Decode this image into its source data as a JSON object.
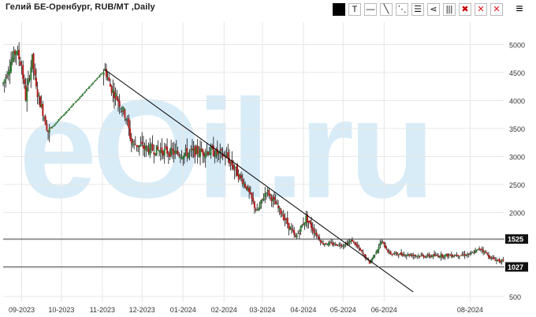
{
  "title": "Гелий БЕ-Оренбург, RUB/MT ,Daily",
  "toolbar": {
    "buttons": [
      {
        "name": "color-swatch-icon",
        "glyph": "",
        "style": "filled"
      },
      {
        "name": "text-tool-icon",
        "glyph": "T",
        "style": ""
      },
      {
        "name": "horizontal-line-icon",
        "glyph": "—",
        "style": ""
      },
      {
        "name": "trend-line-icon",
        "glyph": "╲",
        "style": ""
      },
      {
        "name": "ray-line-icon",
        "glyph": "⋱",
        "style": ""
      },
      {
        "name": "horizontal-lines-icon",
        "glyph": "☰",
        "style": ""
      },
      {
        "name": "fan-lines-icon",
        "glyph": "⋖",
        "style": ""
      },
      {
        "name": "vertical-lines-icon",
        "glyph": "|||",
        "style": ""
      },
      {
        "name": "delete-all-drawings-icon",
        "glyph": "✖",
        "style": "redbg"
      },
      {
        "name": "delete-icon",
        "glyph": "✕",
        "style": "red"
      },
      {
        "name": "close-icon",
        "glyph": "✕",
        "style": "red"
      }
    ],
    "menu_glyph": "≡"
  },
  "watermark": "eOil.ru",
  "chart_data": {
    "type": "candlestick",
    "title": "Гелий БЕ-Оренбург, RUB/MT ,Daily",
    "ylim": [
      400,
      5400
    ],
    "yticks": [
      500,
      1000,
      1500,
      2000,
      2500,
      3000,
      3500,
      4000,
      4500,
      5000
    ],
    "ytick_labels": [
      "500",
      "",
      "",
      "2000",
      "2500",
      "3000",
      "3500",
      "4000",
      "4500",
      "5000"
    ],
    "xlim": [
      "2023-08-25",
      "2024-09-07"
    ],
    "xticks": [
      {
        "date": "2023-09-08",
        "label": "09-2023"
      },
      {
        "date": "2023-10-08",
        "label": "10-2023"
      },
      {
        "date": "2023-11-08",
        "label": "11-2023"
      },
      {
        "date": "2023-12-08",
        "label": "12-2023"
      },
      {
        "date": "2024-01-08",
        "label": "01-2024"
      },
      {
        "date": "2024-02-08",
        "label": "02-2024"
      },
      {
        "date": "2024-03-08",
        "label": "03-2024"
      },
      {
        "date": "2024-04-08",
        "label": "04-2024"
      },
      {
        "date": "2024-05-08",
        "label": "05-2024"
      },
      {
        "date": "2024-06-08",
        "label": "06-2024"
      },
      {
        "date": "2024-08-12",
        "label": "08-2024"
      }
    ],
    "hlines": [
      {
        "value": 1525,
        "label": "1525"
      },
      {
        "value": 1027,
        "label": "1027"
      }
    ],
    "trendline": {
      "from": {
        "date": "2023-11-10",
        "value": 4550
      },
      "to": {
        "date": "2024-06-30",
        "value": 580
      }
    },
    "series_anchors": [
      {
        "date": "2023-08-25",
        "value": 4300
      },
      {
        "date": "2023-08-31",
        "value": 4700
      },
      {
        "date": "2023-09-04",
        "value": 4900
      },
      {
        "date": "2023-09-08",
        "value": 4600
      },
      {
        "date": "2023-09-11",
        "value": 4050
      },
      {
        "date": "2023-09-16",
        "value": 4750
      },
      {
        "date": "2023-09-19",
        "value": 4200
      },
      {
        "date": "2023-09-24",
        "value": 3800
      },
      {
        "date": "2023-09-28",
        "value": 3450
      },
      {
        "date": "2023-11-10",
        "value": 4550
      },
      {
        "date": "2023-11-14",
        "value": 4250
      },
      {
        "date": "2023-11-20",
        "value": 4000
      },
      {
        "date": "2023-11-26",
        "value": 3700
      },
      {
        "date": "2023-11-30",
        "value": 3250
      },
      {
        "date": "2023-12-10",
        "value": 3150
      },
      {
        "date": "2024-01-05",
        "value": 3050
      },
      {
        "date": "2024-01-28",
        "value": 3100
      },
      {
        "date": "2024-02-10",
        "value": 3000
      },
      {
        "date": "2024-02-25",
        "value": 2450
      },
      {
        "date": "2024-03-04",
        "value": 2000
      },
      {
        "date": "2024-03-11",
        "value": 2400
      },
      {
        "date": "2024-03-22",
        "value": 2000
      },
      {
        "date": "2024-04-02",
        "value": 1550
      },
      {
        "date": "2024-04-10",
        "value": 1900
      },
      {
        "date": "2024-04-22",
        "value": 1450
      },
      {
        "date": "2024-05-08",
        "value": 1420
      },
      {
        "date": "2024-05-15",
        "value": 1500
      },
      {
        "date": "2024-05-28",
        "value": 1100
      },
      {
        "date": "2024-06-06",
        "value": 1480
      },
      {
        "date": "2024-06-12",
        "value": 1270
      },
      {
        "date": "2024-07-10",
        "value": 1220
      },
      {
        "date": "2024-08-12",
        "value": 1250
      },
      {
        "date": "2024-08-20",
        "value": 1360
      },
      {
        "date": "2024-08-28",
        "value": 1180
      },
      {
        "date": "2024-09-06",
        "value": 1120
      }
    ],
    "colors": {
      "up": "#2e7d32",
      "down": "#b71c1c",
      "wick": "#111111",
      "trend": "#000000",
      "hline": "#444444",
      "grid": "#e6e6e6",
      "watermark": "#d8ecf8"
    }
  }
}
